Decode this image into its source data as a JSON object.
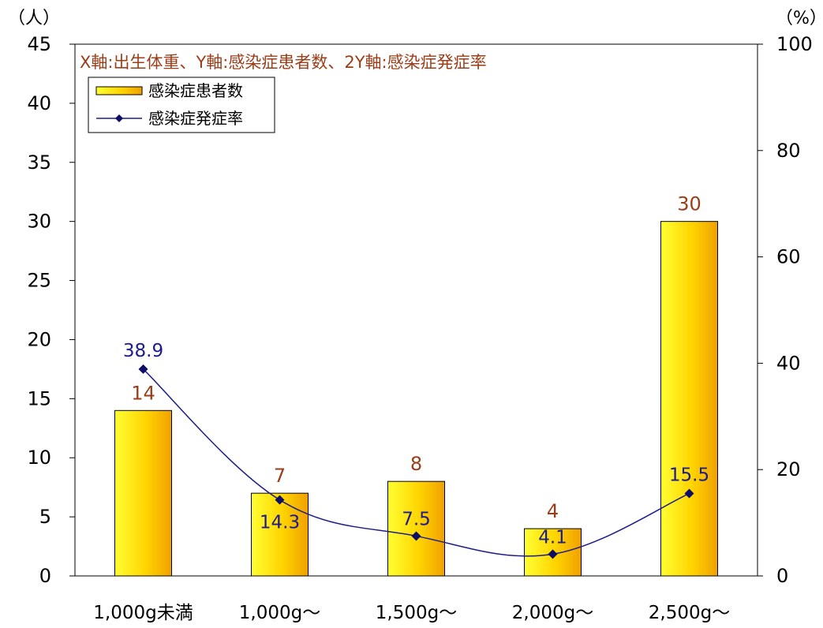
{
  "chart_data": {
    "type": "bar",
    "subtitle": "X軸:出生体重、Y軸:感染症患者数、2Y軸:感染症発症率",
    "y_unit": "（人）",
    "y2_unit": "（%）",
    "ylim": [
      0,
      45
    ],
    "y_ticks": [
      0,
      5,
      10,
      15,
      20,
      25,
      30,
      35,
      40,
      45
    ],
    "y2lim": [
      0,
      100
    ],
    "y2_ticks": [
      0,
      20,
      40,
      60,
      80,
      100
    ],
    "grid": false,
    "legend_position": "top-left",
    "categories": [
      "1,000g未満",
      "1,000g〜",
      "1,500g〜",
      "2,000g〜",
      "2,500g〜"
    ],
    "series": [
      {
        "name": "感染症患者数",
        "type": "bar",
        "axis": "left",
        "values": [
          14,
          7,
          8,
          4,
          30
        ]
      },
      {
        "name": "感染症発症率",
        "type": "line",
        "axis": "right",
        "values": [
          38.9,
          14.3,
          7.5,
          4.1,
          15.5
        ]
      }
    ],
    "colors": {
      "bar_light": "#ffff33",
      "bar_mid": "#ffd400",
      "bar_dark": "#f0a000",
      "bar_outline": "#000000",
      "line": "#1c1c8c",
      "marker": "#0e0e66",
      "bar_label": "#9a3e1a",
      "line_label": "#1c1c8c",
      "subtitle": "#9a3e1a",
      "axis": "#000000"
    }
  }
}
